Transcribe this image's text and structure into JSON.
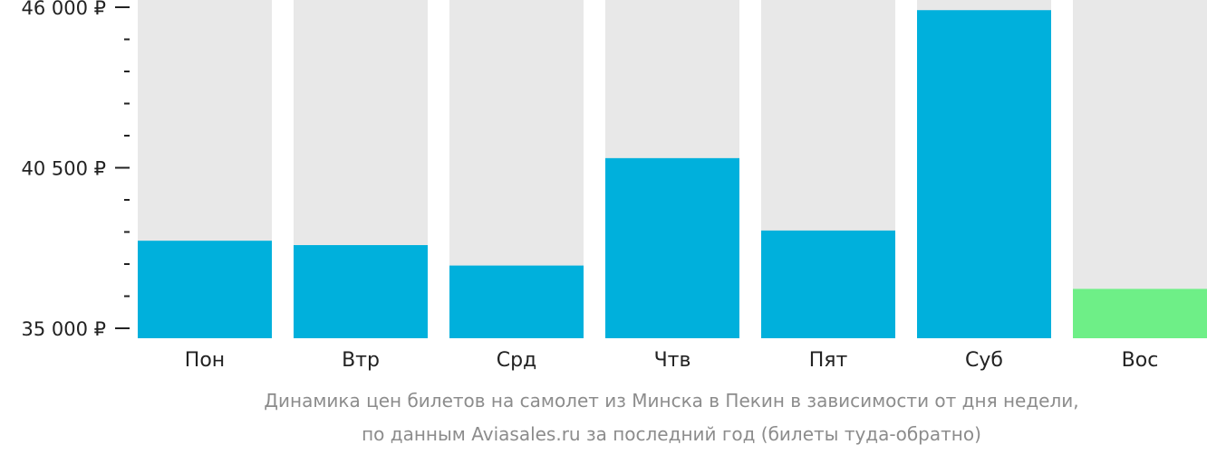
{
  "chart_data": {
    "type": "bar",
    "categories": [
      "Пон",
      "Втр",
      "Срд",
      "Чтв",
      "Пят",
      "Суб",
      "Вос"
    ],
    "values": [
      38000,
      37850,
      37150,
      40830,
      38350,
      45900,
      36350
    ],
    "ylim": [
      35000,
      46000
    ],
    "y_ticks": [
      {
        "value": 35000,
        "label": "35 000 ₽"
      },
      {
        "value": 40500,
        "label": "40 500 ₽"
      },
      {
        "value": 46000,
        "label": "46 000 ₽"
      }
    ],
    "y_minor_step": 1100,
    "grid": false,
    "legend": "none",
    "colors": {
      "bar": "#00b0dc",
      "bar_min": "#6eef87",
      "bar_background": "#e8e8e8",
      "axis": "#222222"
    },
    "caption_line1": "Динамика цен билетов на самолет из Минска в Пекин в зависимости от дня недели,",
    "caption_line2": "по данным Aviasales.ru за последний год (билеты туда-обратно)"
  }
}
